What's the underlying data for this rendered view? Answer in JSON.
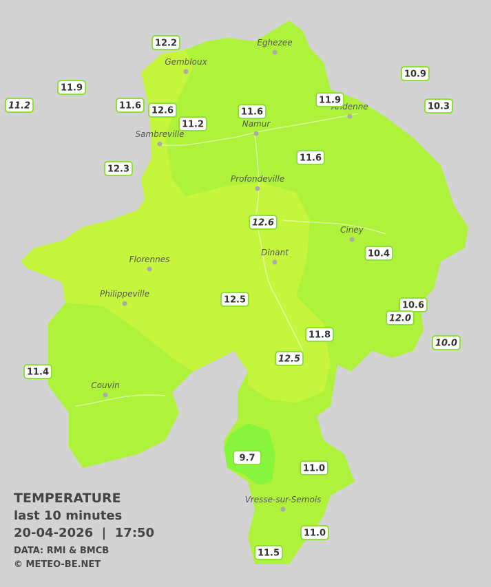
{
  "title": "TEMPERATURE",
  "subtitle": "last 10 minutes",
  "timestamp": "20-04-2026  |  17:50",
  "credits": [
    "DATA: RMI & BMCB",
    "© METEO-BE.NET"
  ],
  "cities": [
    "Eghezee",
    "Gembloux",
    "Andenne",
    "Namur",
    "Sambreville",
    "Profondeville",
    "Ciney",
    "Dinant",
    "Florennes",
    "Philippeville",
    "Couvin",
    "Vresse-sur-Semois"
  ],
  "stations": [
    "12.2",
    "11.9",
    "11.2",
    "11.6",
    "12.6",
    "11.2",
    "11.6",
    "11.9",
    "10.9",
    "10.3",
    "12.3",
    "11.6",
    "12.6",
    "10.4",
    "12.5",
    "10.6",
    "12.0",
    "11.8",
    "12.5",
    "10.0",
    "11.4",
    "9.7",
    "11.0",
    "11.0",
    "11.5"
  ]
}
